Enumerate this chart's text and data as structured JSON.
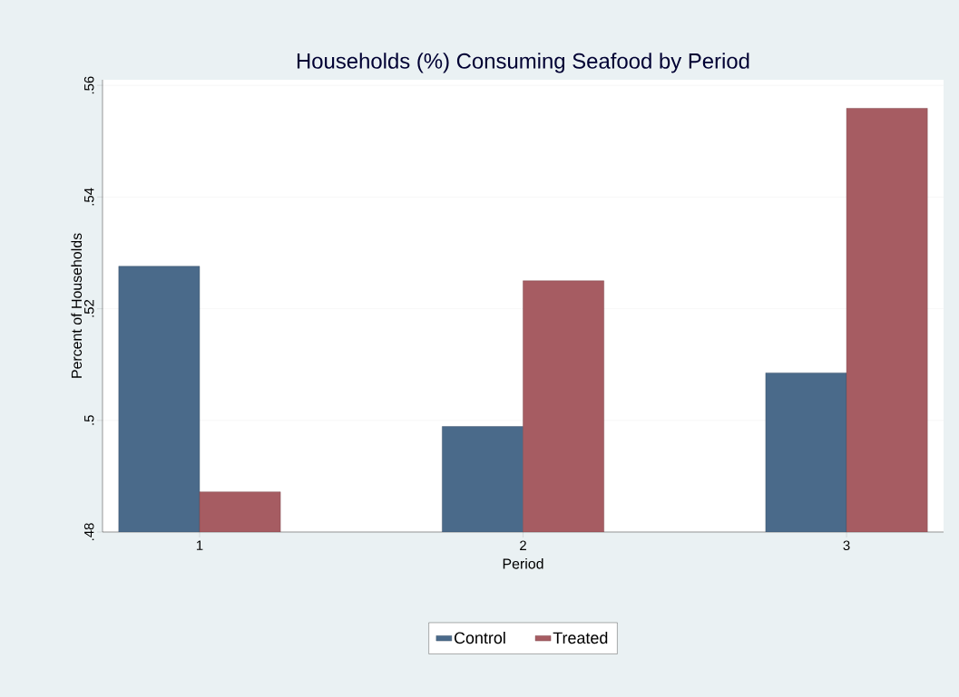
{
  "chart_data": {
    "type": "bar",
    "title": "Households (%) Consuming Seafood by Period",
    "xlabel": "Period",
    "ylabel": "Percent of Households",
    "categories": [
      "1",
      "2",
      "3"
    ],
    "series": [
      {
        "name": "Control",
        "color": "#4a6a8a",
        "values": [
          0.5276,
          0.4989,
          0.5085
        ]
      },
      {
        "name": "Treated",
        "color": "#a65c62",
        "values": [
          0.4872,
          0.525,
          0.5559
        ]
      }
    ],
    "ylim": [
      0.48,
      0.561
    ],
    "yticks": [
      {
        "value": 0.48,
        "label": ".48"
      },
      {
        "value": 0.5,
        "label": ".5"
      },
      {
        "value": 0.52,
        "label": ".52"
      },
      {
        "value": 0.54,
        "label": ".54"
      },
      {
        "value": 0.56,
        "label": ".56"
      }
    ],
    "grid": "y",
    "legend": "bottom"
  }
}
